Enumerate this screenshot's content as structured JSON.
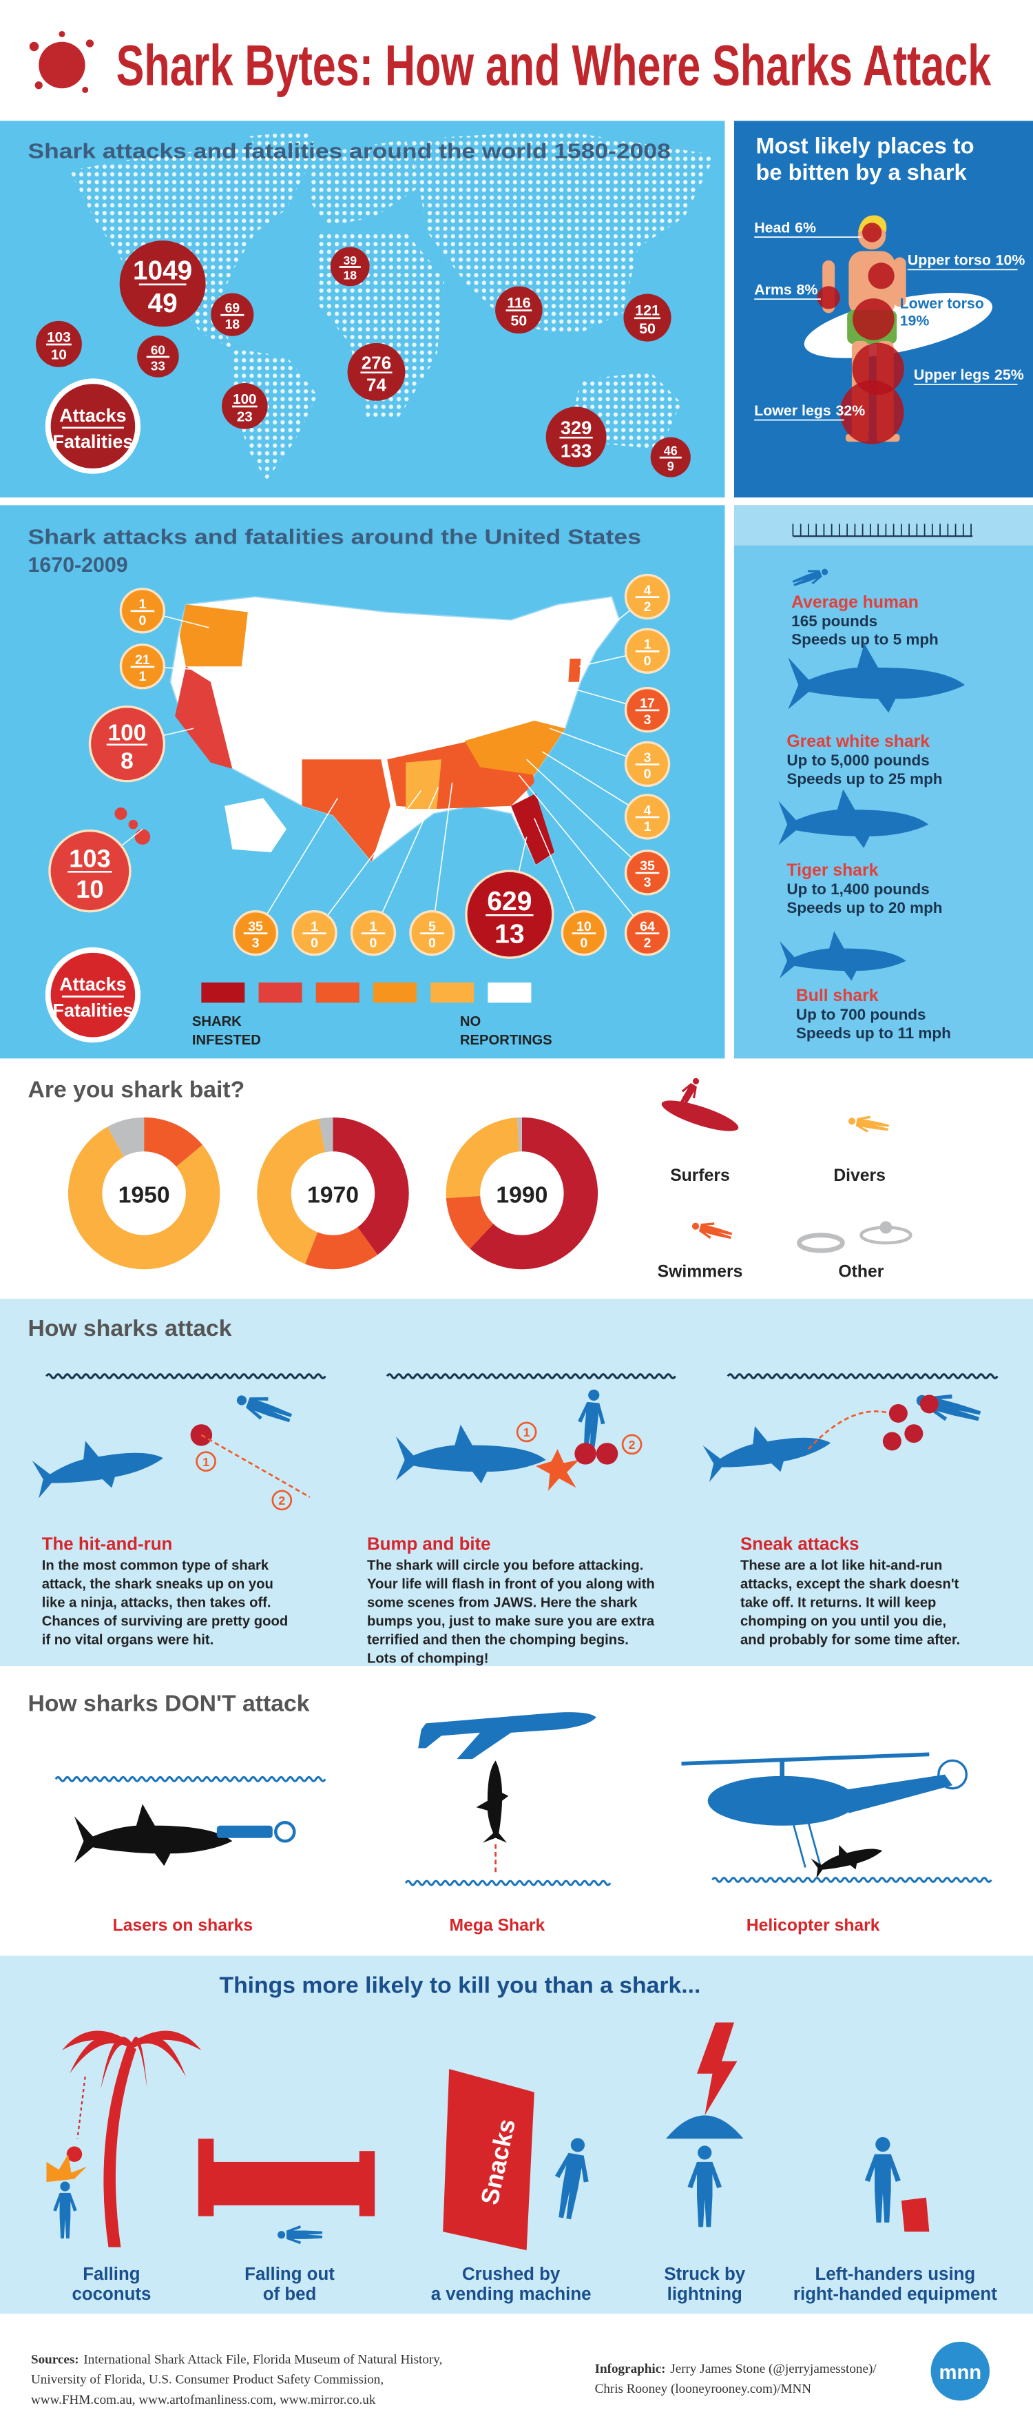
{
  "header": {
    "title": "Shark Bytes: How and Where Sharks Attack"
  },
  "legend": {
    "attacks": "Attacks",
    "fatalities": "Fatalities"
  },
  "world": {
    "title": "Shark attacks and fatalities around the world 1580-2008",
    "color": "#a61e22",
    "regions": [
      {
        "attacks": 1049,
        "fatalities": 49
      },
      {
        "attacks": 103,
        "fatalities": 10
      },
      {
        "attacks": 60,
        "fatalities": 33
      },
      {
        "attacks": 69,
        "fatalities": 18
      },
      {
        "attacks": 39,
        "fatalities": 18
      },
      {
        "attacks": 100,
        "fatalities": 23
      },
      {
        "attacks": 276,
        "fatalities": 74
      },
      {
        "attacks": 116,
        "fatalities": 50
      },
      {
        "attacks": 121,
        "fatalities": 50
      },
      {
        "attacks": 329,
        "fatalities": 133
      },
      {
        "attacks": 46,
        "fatalities": 9
      }
    ]
  },
  "body": {
    "title": [
      "Most likely places to",
      "be bitten by a shark"
    ],
    "color": "#b5121b",
    "parts": [
      {
        "name": "Head",
        "value": 6,
        "value_label": "6%"
      },
      {
        "name": "Arms",
        "value": 8,
        "value_label": "8%"
      },
      {
        "name": "Upper torso",
        "value": 10,
        "value_label": "10%"
      },
      {
        "name": "Lower torso",
        "value": 19,
        "value_label": "19%"
      },
      {
        "name": "Upper legs",
        "value": 25,
        "value_label": "25%"
      },
      {
        "name": "Lower legs",
        "value": 32,
        "value_label": "32%"
      }
    ]
  },
  "us": {
    "title": [
      "Shark attacks and fatalities around the United States",
      "1670-2009"
    ],
    "legend_colors": [
      "#b5121b",
      "#e2403a",
      "#f05a28",
      "#f7941d",
      "#fbb040",
      "#ffffff"
    ],
    "legend_low": [
      "SHARK",
      "INFESTED"
    ],
    "legend_high": [
      "NO",
      "REPORTINGS"
    ],
    "states": [
      {
        "attacks": 1,
        "fatalities": 0,
        "color": "#f7941d"
      },
      {
        "attacks": 21,
        "fatalities": 1,
        "color": "#f7941d"
      },
      {
        "attacks": 100,
        "fatalities": 8,
        "color": "#e2403a"
      },
      {
        "attacks": 103,
        "fatalities": 10,
        "color": "#e2403a"
      },
      {
        "attacks": 35,
        "fatalities": 3,
        "color": "#f7941d"
      },
      {
        "attacks": 1,
        "fatalities": 0,
        "color": "#fbb040"
      },
      {
        "attacks": 1,
        "fatalities": 0,
        "color": "#fbb040"
      },
      {
        "attacks": 5,
        "fatalities": 0,
        "color": "#fbb040"
      },
      {
        "attacks": 629,
        "fatalities": 13,
        "color": "#b5121b"
      },
      {
        "attacks": 10,
        "fatalities": 0,
        "color": "#f7941d"
      },
      {
        "attacks": 64,
        "fatalities": 2,
        "color": "#f05a28"
      },
      {
        "attacks": 35,
        "fatalities": 3,
        "color": "#f05a28"
      },
      {
        "attacks": 4,
        "fatalities": 1,
        "color": "#fbb040"
      },
      {
        "attacks": 3,
        "fatalities": 0,
        "color": "#fbb040"
      },
      {
        "attacks": 17,
        "fatalities": 3,
        "color": "#f05a28"
      },
      {
        "attacks": 1,
        "fatalities": 0,
        "color": "#fbb040"
      },
      {
        "attacks": 4,
        "fatalities": 2,
        "color": "#fbb040"
      }
    ]
  },
  "sizes": {
    "animals": [
      {
        "name": "Average human",
        "lines": [
          "165 pounds",
          "Speeds up to 5 mph"
        ]
      },
      {
        "name": "Great white shark",
        "lines": [
          "Up to 5,000 pounds",
          "Speeds up to 25 mph"
        ]
      },
      {
        "name": "Tiger shark",
        "lines": [
          "Up to 1,400 pounds",
          "Speeds up to 20 mph"
        ]
      },
      {
        "name": "Bull shark",
        "lines": [
          "Up to 700 pounds",
          "Speeds up to 11 mph"
        ]
      }
    ]
  },
  "chart_data": {
    "type": "donut",
    "title": "Are you shark bait?",
    "categories": [
      "1950",
      "1970",
      "1990"
    ],
    "series": [
      {
        "name": "Surfers",
        "color": "#be1e2d",
        "values": [
          0,
          40,
          62
        ]
      },
      {
        "name": "Divers",
        "color": "#f15a29",
        "values": [
          14,
          16,
          12
        ]
      },
      {
        "name": "Swimmers",
        "color": "#fbb040",
        "values": [
          78,
          41,
          25
        ]
      },
      {
        "name": "Other",
        "color": "#bcbec0",
        "values": [
          8,
          3,
          1
        ]
      }
    ]
  },
  "attack": {
    "title": "How sharks attack",
    "markers": [
      "1",
      "2"
    ],
    "types": [
      {
        "name": "The hit-and-run",
        "lines": [
          "In the most common type of shark",
          "attack, the shark sneaks up on you",
          "like a ninja, attacks, then takes off.",
          "Chances of surviving are pretty good",
          "if no vital organs were hit."
        ]
      },
      {
        "name": "Bump and bite",
        "lines": [
          "The shark will circle you before attacking.",
          "Your life will flash in front of you along with",
          "some scenes from JAWS. Here the shark",
          "bumps you, just to make sure you are extra",
          "terrified and then the chomping begins.",
          "Lots of chomping!"
        ]
      },
      {
        "name": "Sneak attacks",
        "lines": [
          "These are a lot like hit-and-run",
          "attacks, except the shark doesn't",
          "take off. It returns. It will keep",
          "chomping on you until you die,",
          "and probably for some time after."
        ]
      }
    ]
  },
  "dont": {
    "title": "How sharks DON'T attack",
    "items": [
      "Lasers on sharks",
      "Mega Shark",
      "Helicopter shark"
    ]
  },
  "likely": {
    "title": "Things more likely to kill you than a shark...",
    "snacks": "Snacks",
    "items": [
      [
        "Falling",
        "coconuts"
      ],
      [
        "Falling out",
        "of bed"
      ],
      [
        "Crushed by",
        "a vending machine"
      ],
      [
        "Struck by",
        "lightning"
      ],
      [
        "Left-handers using",
        "right-handed equipment"
      ]
    ]
  },
  "footer": {
    "sources_label": "Sources:",
    "sources": [
      "International Shark Attack File, Florida Museum of Natural History,",
      "University of Florida, U.S. Consumer Product Safety Commission,",
      "www.FHM.com.au, www.artofmanliness.com, www.mirror.co.uk"
    ],
    "credit_label": "Infographic:",
    "credit": [
      "Jerry James Stone (@jerryjamesstone)/",
      "Chris Rooney (looneyrooney.com)/MNN"
    ],
    "logo": "mnn"
  }
}
